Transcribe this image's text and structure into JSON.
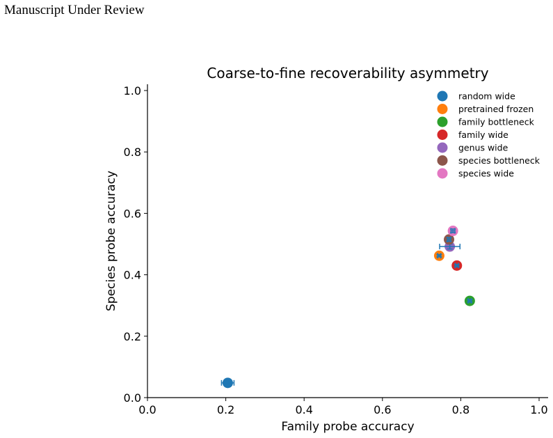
{
  "page": {
    "header": "Manuscript Under Review"
  },
  "chart_data": {
    "type": "scatter",
    "title": "Coarse-to-fine recoverability asymmetry",
    "xlabel": "Family probe accuracy",
    "ylabel": "Species probe accuracy",
    "xlim": [
      0.0,
      1.0
    ],
    "ylim": [
      0.0,
      1.0
    ],
    "xticks": [
      "0.0",
      "0.2",
      "0.4",
      "0.6",
      "0.8",
      "1.0"
    ],
    "yticks": [
      "0.0",
      "0.2",
      "0.4",
      "0.6",
      "0.8",
      "1.0"
    ],
    "grid": false,
    "legend_position": "top-right",
    "errorbar_color": "#1f77b4",
    "series": [
      {
        "name": "random wide",
        "color": "#1f77b4",
        "x": 0.205,
        "y": 0.048,
        "xerr": 0.016,
        "yerr": 0.004
      },
      {
        "name": "pretrained frozen",
        "color": "#ff7f0e",
        "x": 0.745,
        "y": 0.462,
        "xerr": 0.004,
        "yerr": 0.004
      },
      {
        "name": "family bottleneck",
        "color": "#2ca02c",
        "x": 0.823,
        "y": 0.315,
        "xerr": 0.004,
        "yerr": 0.004
      },
      {
        "name": "family wide",
        "color": "#d62728",
        "x": 0.79,
        "y": 0.43,
        "xerr": 0.004,
        "yerr": 0.004
      },
      {
        "name": "genus wide",
        "color": "#9467bd",
        "x": 0.772,
        "y": 0.492,
        "xerr": 0.026,
        "yerr": 0.008
      },
      {
        "name": "species bottleneck",
        "color": "#8c564b",
        "x": 0.77,
        "y": 0.515,
        "xerr": 0.004,
        "yerr": 0.006
      },
      {
        "name": "species wide",
        "color": "#e377c2",
        "x": 0.78,
        "y": 0.543,
        "xerr": 0.005,
        "yerr": 0.006
      }
    ]
  }
}
